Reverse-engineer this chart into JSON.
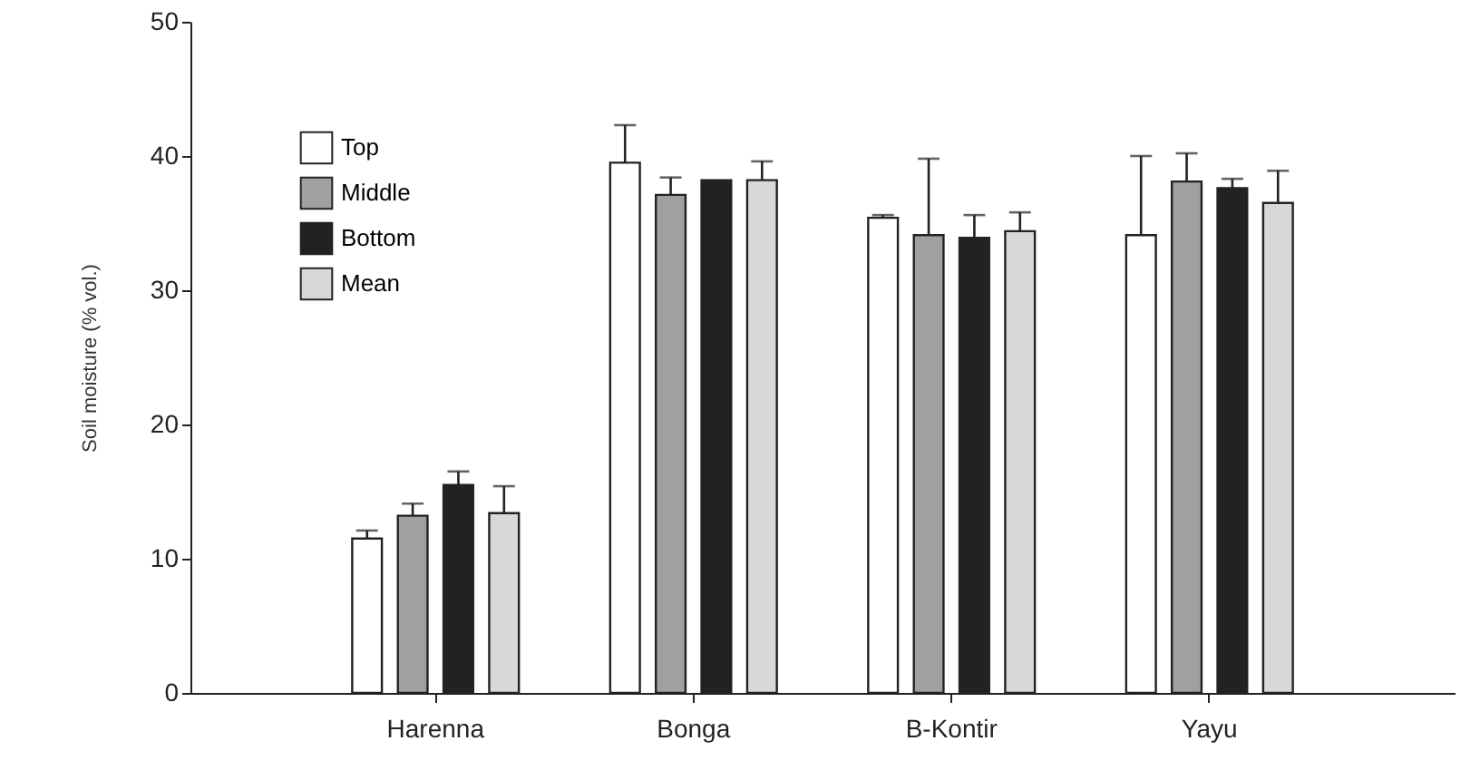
{
  "chart_data": {
    "type": "bar",
    "ylabel": "Soil moisture (% vol.)",
    "categories": [
      "Harenna",
      "Bonga",
      "B-Kontir",
      "Yayu"
    ],
    "series": [
      {
        "name": "Top",
        "color": "#ffffff",
        "values": [
          11.5,
          39.5,
          35.4,
          34.1
        ],
        "errors": [
          0.6,
          2.8,
          0.2,
          5.9
        ]
      },
      {
        "name": "Middle",
        "color": "#a0a0a0",
        "values": [
          13.2,
          37.1,
          34.1,
          38.1
        ],
        "errors": [
          0.9,
          1.3,
          5.7,
          2.1
        ]
      },
      {
        "name": "Bottom",
        "color": "#222222",
        "values": [
          15.5,
          38.2,
          33.9,
          37.6
        ],
        "errors": [
          1.0,
          null,
          1.7,
          0.7
        ]
      },
      {
        "name": "Mean",
        "color": "#d8d8d8",
        "values": [
          13.4,
          38.2,
          34.4,
          36.5
        ],
        "errors": [
          2.0,
          1.4,
          1.4,
          2.4
        ]
      }
    ],
    "ylim": [
      0,
      50
    ],
    "yticks": [
      0,
      10,
      20,
      30,
      40,
      50
    ],
    "grid": false,
    "legend": "top left"
  }
}
